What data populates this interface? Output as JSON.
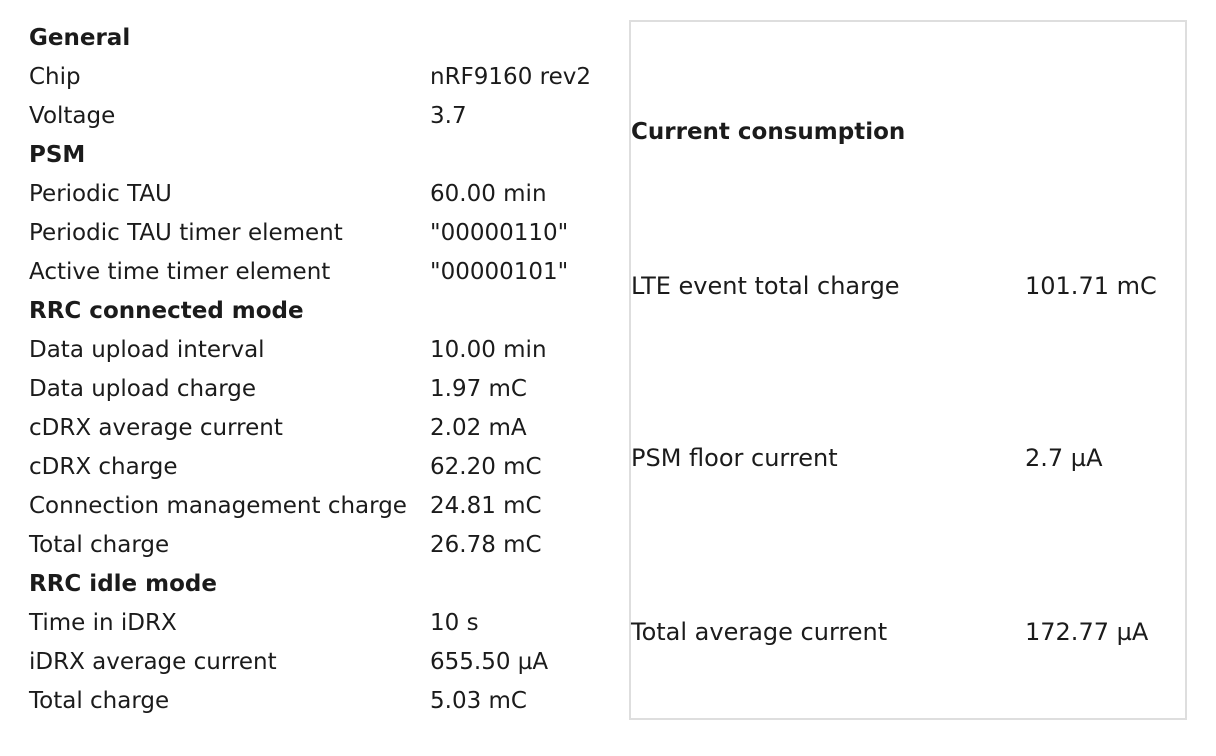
{
  "left": {
    "rows": [
      {
        "label": "General",
        "value": "",
        "heading": true
      },
      {
        "label": "Chip",
        "value": "nRF9160 rev2"
      },
      {
        "label": "Voltage",
        "value": "3.7"
      },
      {
        "label": "PSM",
        "value": "",
        "heading": true
      },
      {
        "label": "Periodic TAU",
        "value": "60.00 min"
      },
      {
        "label": "Periodic TAU timer element",
        "value": "\"00000110\""
      },
      {
        "label": "Active time timer element",
        "value": "\"00000101\""
      },
      {
        "label": "RRC connected mode",
        "value": "",
        "heading": true
      },
      {
        "label": "Data upload interval",
        "value": "10.00 min"
      },
      {
        "label": "Data upload charge",
        "value": "1.97 mC"
      },
      {
        "label": "cDRX average current",
        "value": "2.02 mA"
      },
      {
        "label": "cDRX charge",
        "value": "62.20 mC"
      },
      {
        "label": "Connection management charge",
        "value": "24.81 mC"
      },
      {
        "label": "Total charge",
        "value": "26.78 mC"
      },
      {
        "label": "RRC idle mode",
        "value": "",
        "heading": true
      },
      {
        "label": "Time in iDRX",
        "value": "10 s"
      },
      {
        "label": "iDRX average current",
        "value": "655.50 µA"
      },
      {
        "label": "Total charge",
        "value": "5.03 mC"
      }
    ]
  },
  "right": {
    "title": "Current consumption",
    "metrics": [
      {
        "label": "LTE event total charge",
        "value": "101.71 mC"
      },
      {
        "label": "PSM floor current",
        "value": "2.7 µA"
      },
      {
        "label": "Total average current",
        "value": "172.77 µA"
      }
    ]
  }
}
